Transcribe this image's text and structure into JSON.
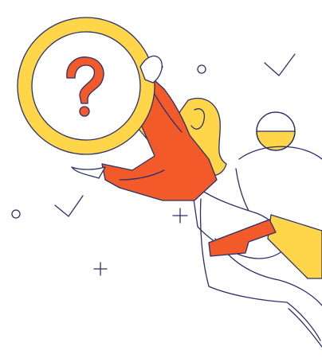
{
  "illustration": {
    "subject": "woman-holding-magnifying-glass",
    "icons": {
      "question": "question-mark-icon",
      "magnifier": "magnifying-glass-icon",
      "checkmark": "checkmark-icon",
      "plus": "plus-icon",
      "circle": "circle-icon"
    },
    "colors": {
      "yellow": "#FFD54A",
      "orange": "#F25A2A",
      "outline": "#2B2F6B",
      "background": "#FFFFFF"
    }
  }
}
